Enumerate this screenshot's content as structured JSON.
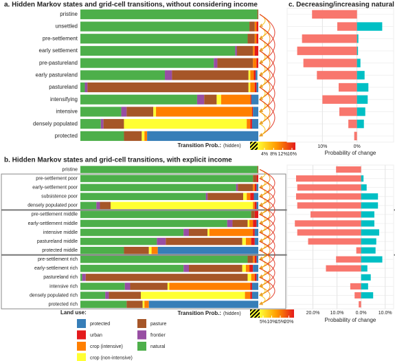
{
  "chart_data": [
    {
      "type": "stacked_bar",
      "title": "a. Hidden Markov states and grid-cell transitions, without considering income",
      "categories": [
        "pristine",
        "unsettled",
        "pre-settlement",
        "early settlement",
        "pre-pastureland",
        "early pastureland",
        "pastureland",
        "intensifying",
        "intensive",
        "densely populated",
        "protected"
      ],
      "xlim": [
        0,
        1
      ],
      "series": [
        {
          "color": "#4daf4a",
          "values": [
            0.995,
            0.95,
            0.94,
            0.87,
            0.75,
            0.475,
            0.025,
            0.656,
            0.23,
            0.115,
            0.245
          ]
        },
        {
          "color": "#984ea3",
          "values": [
            0,
            0,
            0,
            0.01,
            0.02,
            0.04,
            0.015,
            0.04,
            0.03,
            0.015,
            0
          ]
        },
        {
          "color": "#a65628",
          "values": [
            0.005,
            0.03,
            0.04,
            0.09,
            0.2,
            0.43,
            0.905,
            0.07,
            0.15,
            0.115,
            0.1
          ]
        },
        {
          "color": "#ffff33",
          "values": [
            0,
            0,
            0,
            0,
            0,
            0.01,
            0.01,
            0.025,
            0.015,
            0.69,
            0.015
          ]
        },
        {
          "color": "#ff7f00",
          "values": [
            0,
            0.01,
            0.01,
            0.01,
            0.02,
            0.02,
            0.025,
            0.165,
            0.54,
            0.02,
            0.015
          ]
        },
        {
          "color": "#e41a1c",
          "values": [
            0,
            0.01,
            0.01,
            0.02,
            0.01,
            0.01,
            0.01,
            0.005,
            0.005,
            0.01,
            0
          ]
        },
        {
          "color": "#377eb8",
          "values": [
            0,
            0,
            0,
            0,
            0,
            0.01,
            0.01,
            0.04,
            0.03,
            0.035,
            0.625
          ]
        }
      ],
      "colorbar": {
        "label": "Transition Prob.:",
        "hidden_label": "(hidden)",
        "lim": [
          1,
          17.5
        ],
        "ticks": [
          {
            "value": 4,
            "label": "4%"
          },
          {
            "value": 8,
            "label": "8%"
          },
          {
            "value": 12,
            "label": "12%"
          },
          {
            "value": 16,
            "label": "16%"
          }
        ],
        "colors": [
          "#ffff33",
          "#ff9900",
          "#e41a1c"
        ]
      }
    },
    {
      "type": "diverging_bar",
      "title": "c. Decreasing/increasing natural land",
      "xlabel": "Probability of change",
      "xlim": [
        -20.2,
        10.6
      ],
      "xticks": [
        {
          "value": -10,
          "label": "10%"
        },
        {
          "value": 0,
          "label": "0%"
        }
      ],
      "series": [
        {
          "color": "#f8766d",
          "values": [
            -13,
            -5.7,
            -15.9,
            -17.3,
            -15.5,
            -11.6,
            -5.3,
            -10,
            -5.1,
            -2.5,
            -0.8
          ]
        },
        {
          "color": "#00bfc4",
          "values": [
            0,
            7.3,
            0.4,
            0.3,
            1,
            2.2,
            3.3,
            3.1,
            2.4,
            2,
            0
          ]
        }
      ]
    },
    {
      "type": "stacked_bar",
      "title": "b. Hidden Markov states and grid-cell transitions, with explicit income",
      "categories": [
        "pristine",
        "pre-settlement poor",
        "early-settlement poor",
        "subsistence poor",
        "densely populated poor",
        "pre-settlement middle",
        "early-settlement middle",
        "intensive middle",
        "pastureland middle",
        "protected middle",
        "pre-settlement rich",
        "early-settlement rich",
        "pastureland rich",
        "intensive rich",
        "densely populated rich",
        "protected rich"
      ],
      "xlim": [
        0,
        1
      ],
      "legend_title": "Land use:",
      "series": [
        {
          "name": "natural",
          "color": "#4daf4a",
          "values": [
            0.995,
            0.97,
            0.875,
            0.705,
            0.09,
            0.96,
            0.825,
            0.58,
            0.43,
            0.245,
            0.94,
            0.58,
            0.01,
            0.25,
            0.14,
            0.26
          ]
        },
        {
          "name": "frontier",
          "color": "#984ea3",
          "values": [
            0,
            0,
            0.01,
            0.01,
            0.02,
            0,
            0.03,
            0.03,
            0.05,
            0,
            0,
            0.03,
            0.02,
            0.03,
            0.02,
            0
          ]
        },
        {
          "name": "pasture",
          "color": "#a65628",
          "values": [
            0.005,
            0.02,
            0.085,
            0.2,
            0.06,
            0.02,
            0.085,
            0.105,
            0.43,
            0.14,
            0.03,
            0.3,
            0.91,
            0.21,
            0.18,
            0.09
          ]
        },
        {
          "name": "crop (non-intensive)",
          "color": "#ffff33",
          "values": [
            0,
            0,
            0,
            0.02,
            0.8,
            0,
            0.01,
            0.01,
            0.02,
            0.015,
            0,
            0.02,
            0.02,
            0.01,
            0.585,
            0.01
          ]
        },
        {
          "name": "crop (intensive)",
          "color": "#ff7f00",
          "values": [
            0,
            0,
            0.01,
            0.02,
            0.01,
            0,
            0.02,
            0.245,
            0.03,
            0.035,
            0.01,
            0.02,
            0.02,
            0.455,
            0.03,
            0.025
          ]
        },
        {
          "name": "urban",
          "color": "#e41a1c",
          "values": [
            0,
            0.01,
            0.01,
            0.02,
            0.01,
            0.02,
            0.02,
            0.01,
            0.02,
            0,
            0.01,
            0.02,
            0.01,
            0.01,
            0.01,
            0
          ]
        },
        {
          "name": "protected",
          "color": "#377eb8",
          "values": [
            0,
            0,
            0.01,
            0.025,
            0.01,
            0,
            0.01,
            0.02,
            0.02,
            0.565,
            0.01,
            0.03,
            0.01,
            0.035,
            0.035,
            0.615
          ]
        }
      ],
      "colorbar": {
        "label": "Transition Prob.:",
        "hidden_label": "(hidden)",
        "lim": [
          3,
          23
        ],
        "ticks": [
          {
            "value": 5,
            "label": "5%"
          },
          {
            "value": 10,
            "label": "10%"
          },
          {
            "value": 15,
            "label": "15%"
          },
          {
            "value": 20,
            "label": "20%"
          }
        ],
        "colors": [
          "#ffff33",
          "#ff9900",
          "#e41a1c"
        ]
      }
    },
    {
      "type": "diverging_bar",
      "xlabel": "Probability of change",
      "xlim": [
        -30.7,
        13.5
      ],
      "xticks": [
        {
          "value": -20,
          "label": "20.0%"
        },
        {
          "value": -10,
          "label": "10.0%"
        },
        {
          "value": 0,
          "label": "0.0%"
        },
        {
          "value": 10,
          "label": "10.0%"
        }
      ],
      "series": [
        {
          "color": "#f8766d",
          "values": [
            -10.4,
            -27,
            -26.5,
            -27,
            -26.5,
            -21,
            -27.5,
            -26.5,
            -22,
            -2,
            -10.4,
            -14.6,
            0,
            -4.5,
            -2.7,
            -1
          ]
        },
        {
          "color": "#00bfc4",
          "values": [
            0,
            1,
            2.3,
            7,
            7,
            5.5,
            5.5,
            7.5,
            6.3,
            6,
            8.8,
            2.6,
            4,
            2.9,
            5,
            0
          ]
        }
      ]
    }
  ]
}
